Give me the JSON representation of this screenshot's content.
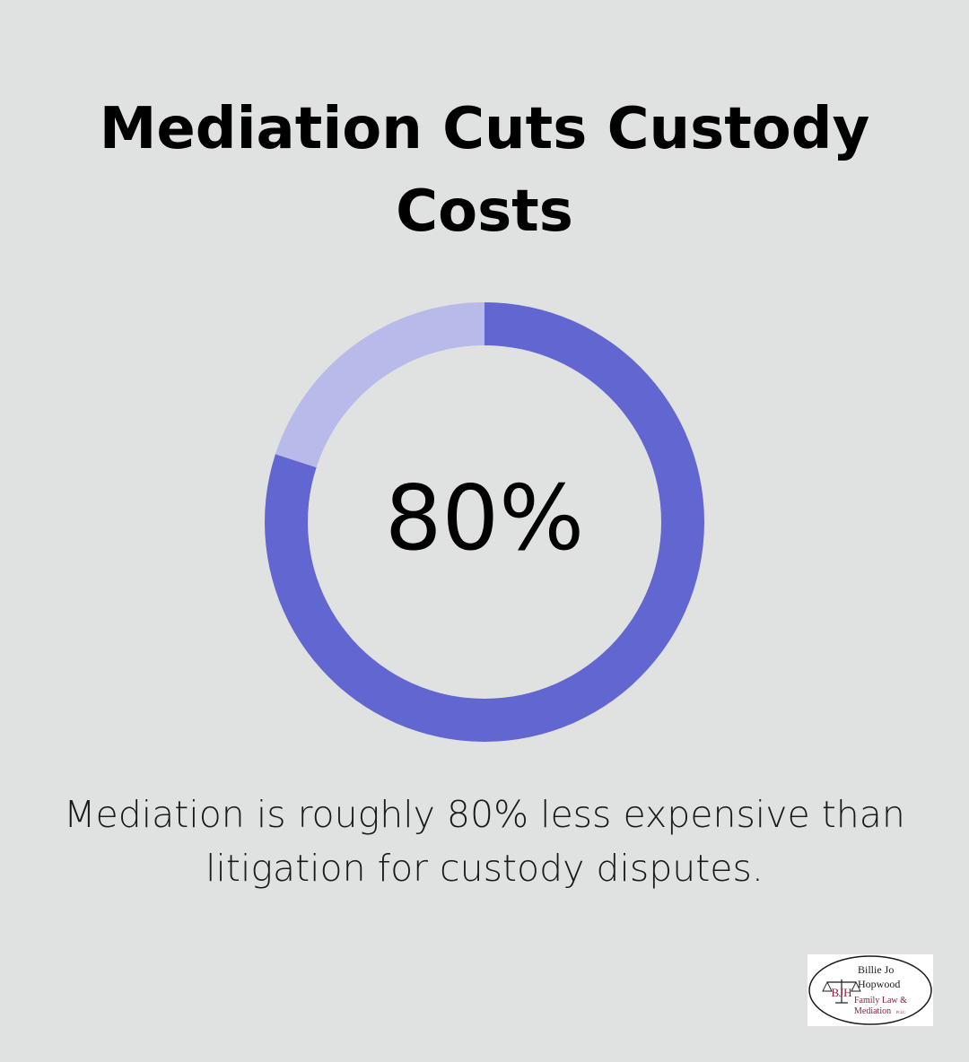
{
  "title": "Mediation Cuts Custody Costs",
  "chart_data": {
    "type": "pie",
    "variant": "donut",
    "center_label": "80%",
    "slices": [
      {
        "label": "",
        "value": 80,
        "color": "#6166d1"
      },
      {
        "label": "",
        "value": 20,
        "color": "#b8bbea"
      }
    ],
    "start_angle": "top",
    "direction": "clockwise"
  },
  "caption": "Mediation is roughly 80% less expensive than litigation for custody disputes.",
  "logo": {
    "line1": "Billie Jo",
    "line2": "Hopwood",
    "line3": "Family Law &",
    "line4": "Mediation",
    "suffix": "PLLC",
    "monogram": "BJH",
    "colors": {
      "dark": "#1a1a1a",
      "accent": "#8a1f3c"
    }
  },
  "colors": {
    "background": "#e0e1e1",
    "primary": "#6166d1",
    "secondary": "#b8bbea"
  }
}
